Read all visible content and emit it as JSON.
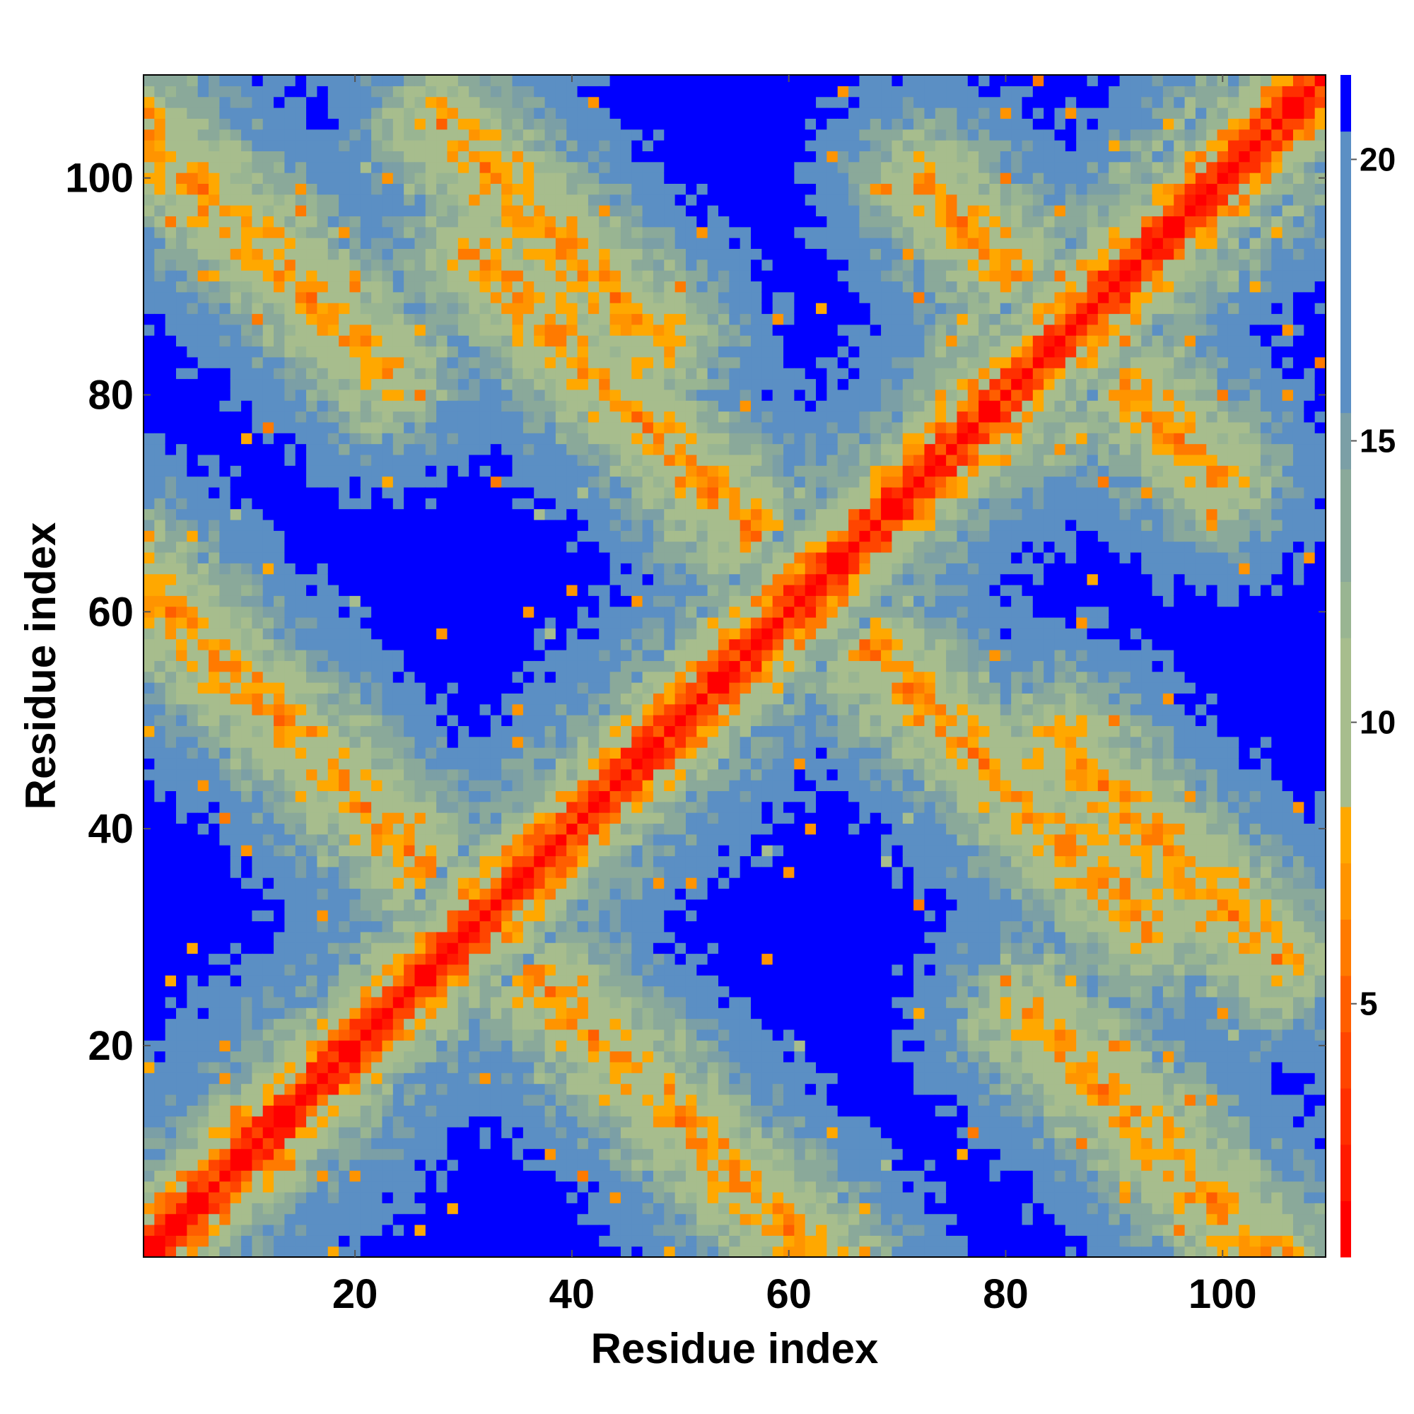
{
  "chart_data": {
    "type": "heatmap",
    "title": "",
    "xlabel": "Residue index",
    "ylabel": "Residue index",
    "xlim": [
      0.5,
      109.5
    ],
    "ylim": [
      0.5,
      109.5
    ],
    "n_residues": 109,
    "x_ticks": [
      20,
      40,
      60,
      80,
      100
    ],
    "y_ticks": [
      20,
      40,
      60,
      80,
      100
    ],
    "x_tick_labels": [
      "20",
      "40",
      "60",
      "80",
      "100"
    ],
    "y_tick_labels": [
      "20",
      "40",
      "60",
      "80",
      "100"
    ],
    "colorbar": {
      "range": [
        0.5,
        21.5
      ],
      "ticks": [
        5,
        10,
        15,
        20
      ],
      "tick_labels": [
        "5",
        "10",
        "15",
        "20"
      ],
      "levels": [
        {
          "max": 1.5,
          "color": "#ff0000"
        },
        {
          "max": 2.5,
          "color": "#ff1a00"
        },
        {
          "max": 3.5,
          "color": "#ff2f00"
        },
        {
          "max": 4.5,
          "color": "#ff4500"
        },
        {
          "max": 5.5,
          "color": "#ff5e00"
        },
        {
          "max": 6.5,
          "color": "#ff7a00"
        },
        {
          "max": 7.5,
          "color": "#ff9400"
        },
        {
          "max": 8.5,
          "color": "#ffa800"
        },
        {
          "max": 11.5,
          "color": "#a7bd8d"
        },
        {
          "max": 12.5,
          "color": "#99b592"
        },
        {
          "max": 14.5,
          "color": "#8aa99a"
        },
        {
          "max": 15.5,
          "color": "#7b9fa6"
        },
        {
          "max": 20.5,
          "color": "#5b8fc4"
        },
        {
          "max": 21.5,
          "color": "#0000ff"
        }
      ]
    },
    "cell_value_rule": "C-alpha distance matrix: value rises with |i-j| along diagonal, lobed contact regions off-diagonal, saturated blue (>20) in the four large empty quadrants",
    "contact_regions": [
      {
        "i": [
          1,
          30
        ],
        "j": [
          1,
          30
        ],
        "description": "lower-left near diagonal"
      },
      {
        "i": [
          1,
          20
        ],
        "j": [
          40,
          60
        ],
        "description": "N-term contacts with 40-60 (left arm)"
      },
      {
        "i": [
          40,
          60
        ],
        "j": [
          1,
          20
        ],
        "description": "mirror of left arm (bottom arm)"
      },
      {
        "i": [
          55,
          85
        ],
        "j": [
          60,
          80
        ],
        "description": "central crossing"
      },
      {
        "i": [
          80,
          109
        ],
        "j": [
          80,
          109
        ],
        "description": "upper-right near diagonal"
      },
      {
        "i": [
          1,
          20
        ],
        "j": [
          80,
          109
        ],
        "description": "top-left arm"
      },
      {
        "i": [
          80,
          109
        ],
        "j": [
          1,
          20
        ],
        "description": "bottom-right arm"
      }
    ]
  }
}
